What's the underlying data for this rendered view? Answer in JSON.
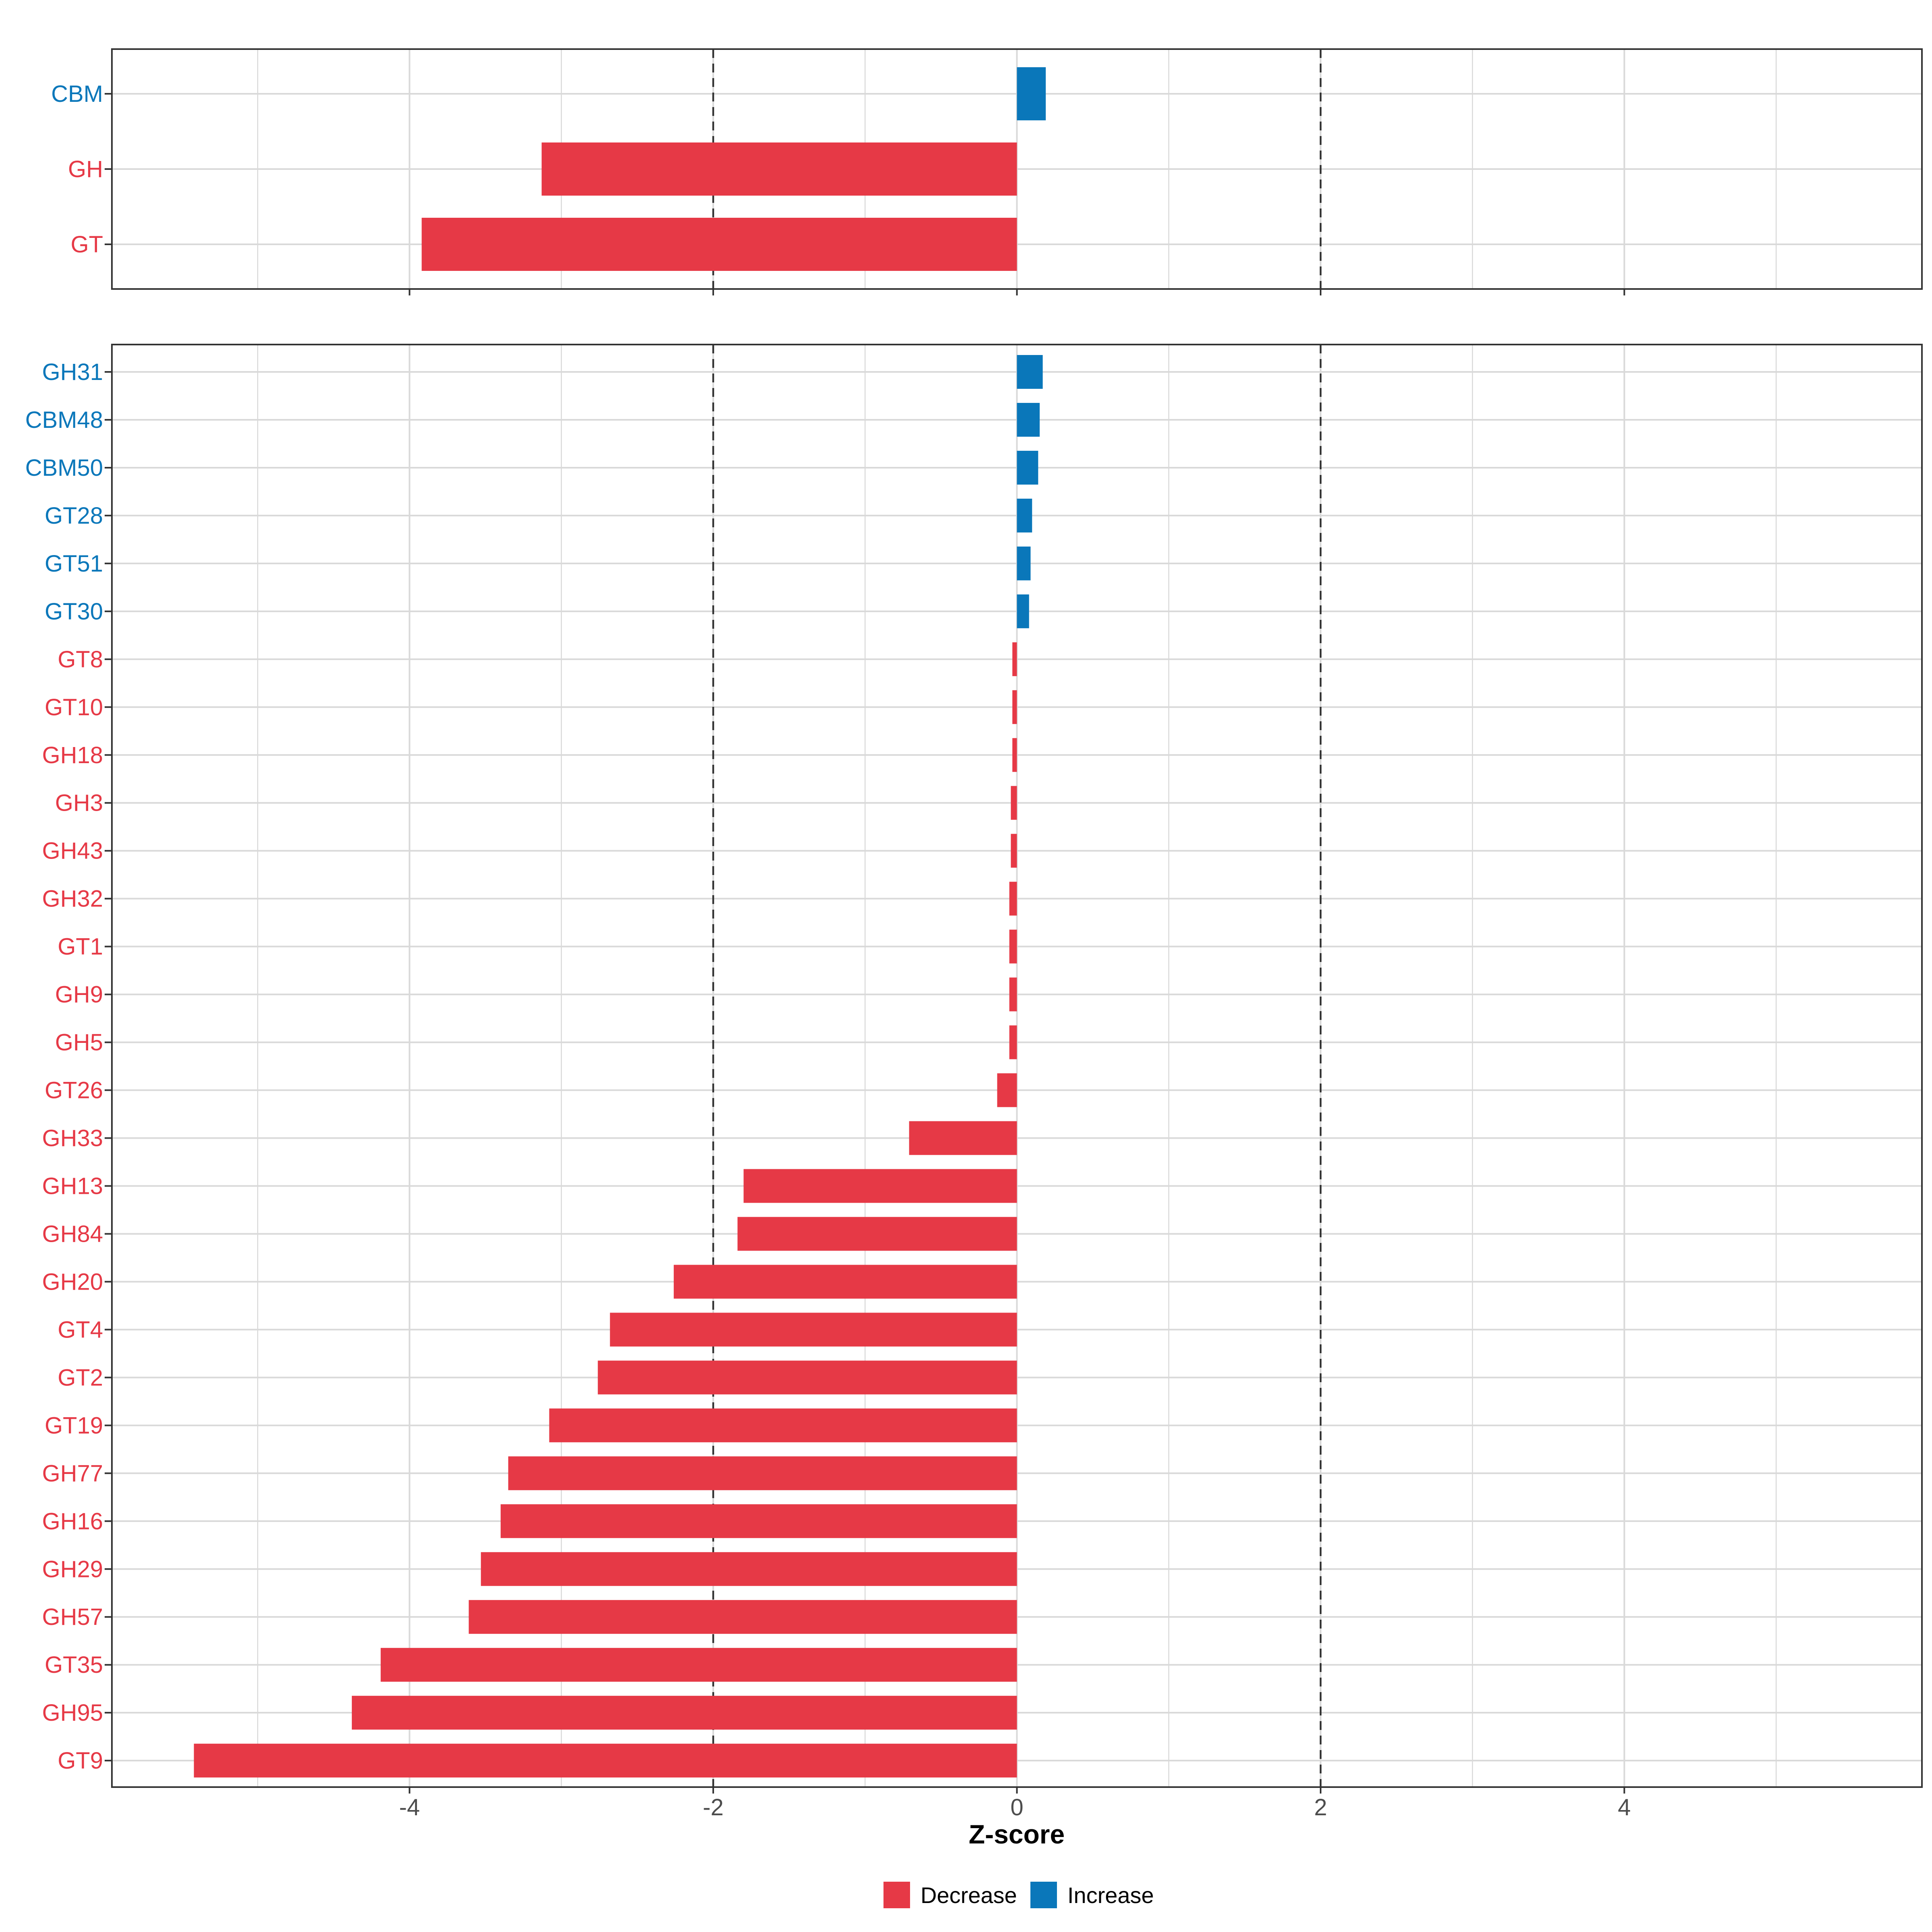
{
  "colors": {
    "decrease": "#E63946",
    "increase": "#0A77BA",
    "grid": "#D9D9D9",
    "panel_border": "#333333",
    "reference_line": "#333333"
  },
  "chart_data": [
    {
      "type": "bar",
      "orientation": "horizontal",
      "panel": "top",
      "categories": [
        "CBM",
        "GH",
        "GT"
      ],
      "values": [
        0.19,
        -3.13,
        -3.92
      ],
      "xlim": [
        -5.96,
        5.96
      ],
      "reference_lines": [
        -2,
        2
      ],
      "grid": true
    },
    {
      "type": "bar",
      "orientation": "horizontal",
      "panel": "bottom",
      "categories": [
        "GH31",
        "CBM48",
        "CBM50",
        "GT28",
        "GT51",
        "GT30",
        "GT8",
        "GT10",
        "GH18",
        "GH3",
        "GH43",
        "GH32",
        "GT1",
        "GH9",
        "GH5",
        "GT26",
        "GH33",
        "GH13",
        "GH84",
        "GH20",
        "GT4",
        "GT2",
        "GT19",
        "GH77",
        "GH16",
        "GH29",
        "GH57",
        "GT35",
        "GH95",
        "GT9"
      ],
      "values": [
        0.17,
        0.15,
        0.14,
        0.1,
        0.09,
        0.08,
        -0.03,
        -0.03,
        -0.03,
        -0.04,
        -0.04,
        -0.05,
        -0.05,
        -0.05,
        -0.05,
        -0.13,
        -0.71,
        -1.8,
        -1.84,
        -2.26,
        -2.68,
        -2.76,
        -3.08,
        -3.35,
        -3.4,
        -3.53,
        -3.61,
        -4.19,
        -4.38,
        -5.42
      ],
      "xlim": [
        -5.96,
        5.96
      ],
      "reference_lines": [
        -2,
        2
      ],
      "grid": true,
      "xticks": [
        "-4",
        "-2",
        "0",
        "2",
        "4"
      ],
      "xlabel": "Z-score"
    }
  ],
  "legend": {
    "items": [
      {
        "label": "Decrease",
        "color_key": "decrease"
      },
      {
        "label": "Increase",
        "color_key": "increase"
      }
    ]
  }
}
